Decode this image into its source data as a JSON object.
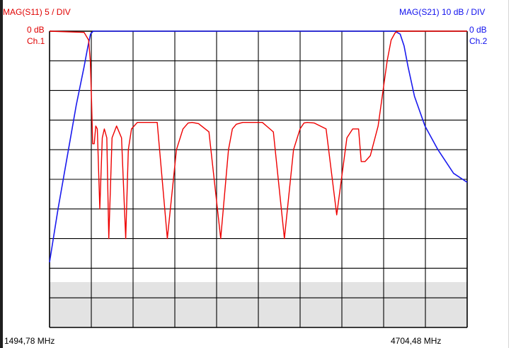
{
  "colors": {
    "s11": "#ee0000",
    "s21": "#1a1aee",
    "grid": "#000000",
    "lower_band": "#e3e3e3"
  },
  "labels": {
    "ch1_scale": "MAG(S11) 5  / DIV",
    "ch1_ref": "0 dB",
    "ch1_name": "Ch.1",
    "ch2_scale": "MAG(S21) 10 dB / DIV",
    "ch2_ref": "0 dB",
    "ch2_name": "Ch.2",
    "start_freq": "1494,78 MHz",
    "stop_freq": "4704,48 MHz"
  },
  "chart_data": {
    "type": "line",
    "x_start_mhz": 1494.78,
    "x_stop_mhz": 4704.48,
    "grid": true,
    "grid_divisions_x": 10,
    "grid_divisions_y": 10,
    "series": [
      {
        "name": "MAG(S11)",
        "unit_per_div": 5,
        "ref_db": 0,
        "x": [
          1494.78,
          1760,
          1795,
          1808,
          1818,
          1826,
          1838,
          1850,
          1862,
          1881,
          1900,
          1916,
          1935,
          1950,
          1975,
          2010,
          2048,
          2080,
          2100,
          2125,
          2170,
          2240,
          2322,
          2400,
          2470,
          2520,
          2560,
          2590,
          2640,
          2720,
          2810,
          2870,
          2900,
          2930,
          2980,
          3050,
          3130,
          3215,
          3300,
          3370,
          3420,
          3450,
          3475,
          3530,
          3620,
          3702,
          3780,
          3825,
          3870,
          3890,
          3920,
          3960,
          4020,
          4090,
          4120,
          4150,
          4170,
          4195,
          4230,
          4268,
          4282,
          4300,
          4340,
          4420,
          4500,
          4704.48
        ],
        "y": [
          0,
          -0.2,
          -1.5,
          -5,
          -12,
          -19,
          -19,
          -16,
          -16.5,
          -30,
          -18,
          -16.5,
          -18,
          -35,
          -18,
          -16,
          -18,
          -35,
          -20,
          -16.5,
          -15.4,
          -15.4,
          -15.4,
          -35,
          -20,
          -16.5,
          -15.5,
          -15.4,
          -15.6,
          -17,
          -35,
          -20,
          -16.5,
          -15.7,
          -15.4,
          -15.4,
          -15.4,
          -17,
          -35,
          -20,
          -16.5,
          -15.5,
          -15.4,
          -15.5,
          -16.5,
          -31,
          -18,
          -16.5,
          -16.5,
          -22,
          -22,
          -21,
          -16,
          -5,
          -1.5,
          -0.3,
          0,
          0,
          0,
          0,
          0,
          0,
          0,
          0,
          0,
          0
        ]
      },
      {
        "name": "MAG(S21)",
        "unit_per_div": 10,
        "ref_db": 0,
        "x": [
          1494.78,
          1560,
          1640,
          1700,
          1760,
          1790,
          1810,
          1830,
          4150,
          4190,
          4220,
          4250,
          4300,
          4380,
          4480,
          4600,
          4704.48
        ],
        "y": [
          -78,
          -60,
          -40,
          -25,
          -12,
          -5,
          -1,
          0,
          0,
          -1,
          -5,
          -12,
          -22,
          -32,
          -40,
          -48,
          -51
        ]
      }
    ]
  }
}
